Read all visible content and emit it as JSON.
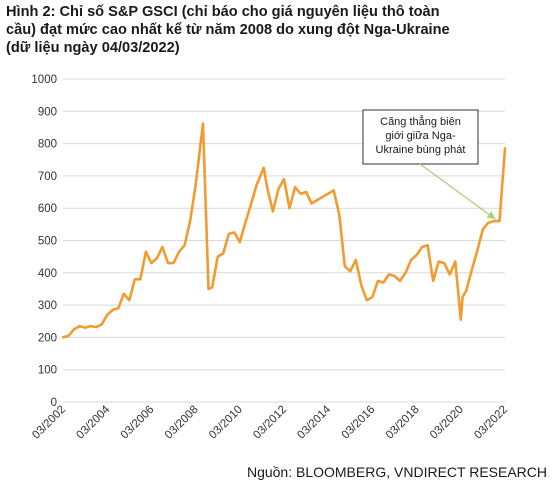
{
  "figure": {
    "title_lines": [
      "Hình 2: Chỉ số S&P GSCI (chỉ báo cho giá nguyên liệu thô toàn",
      "cầu) đạt mức cao nhất kể từ năm 2008 do xung đột Nga-Ukraine",
      "(dữ liệu ngày 04/03/2022)"
    ],
    "source": "Nguồn: BLOOMBERG, VNDIRECT RESEARCH"
  },
  "chart_data": {
    "type": "line",
    "title": "Hình 2: Chỉ số S&P GSCI (chỉ báo cho giá nguyên liệu thô toàn cầu) đạt mức cao nhất kể từ năm 2008 do xung đột Nga-Ukraine (dữ liệu ngày 04/03/2022)",
    "xlabel": "",
    "ylabel": "",
    "ylim": [
      0,
      1000
    ],
    "xlim": [
      "2002-03",
      "2022-03"
    ],
    "yticks": [
      0,
      100,
      200,
      300,
      400,
      500,
      600,
      700,
      800,
      900,
      1000
    ],
    "xticks": [
      "03/2002",
      "03/2004",
      "03/2006",
      "03/2008",
      "03/2010",
      "03/2012",
      "03/2014",
      "03/2016",
      "03/2018",
      "03/2020",
      "03/2022"
    ],
    "grid": "horizontal",
    "series_color": "#f29b30",
    "series": [
      {
        "x": [
          "2002-03",
          "2002-06",
          "2002-09",
          "2002-12",
          "2003-03",
          "2003-06",
          "2003-09",
          "2003-12",
          "2004-03",
          "2004-06",
          "2004-09",
          "2004-12",
          "2005-03",
          "2005-06",
          "2005-09",
          "2005-12",
          "2006-03",
          "2006-06",
          "2006-09",
          "2006-12",
          "2007-03",
          "2007-06",
          "2007-09",
          "2007-12",
          "2008-03",
          "2008-07",
          "2008-10",
          "2008-12",
          "2009-03",
          "2009-06",
          "2009-09",
          "2009-12",
          "2010-03",
          "2010-06",
          "2010-09",
          "2010-12",
          "2011-04",
          "2011-06",
          "2011-09",
          "2011-12",
          "2012-03",
          "2012-06",
          "2012-09",
          "2012-12",
          "2013-03",
          "2013-06",
          "2013-09",
          "2013-12",
          "2014-06",
          "2014-09",
          "2014-12",
          "2015-03",
          "2015-06",
          "2015-09",
          "2015-12",
          "2016-03",
          "2016-06",
          "2016-09",
          "2016-12",
          "2017-03",
          "2017-06",
          "2017-09",
          "2017-12",
          "2018-03",
          "2018-06",
          "2018-09",
          "2018-12",
          "2019-03",
          "2019-06",
          "2019-09",
          "2019-12",
          "2020-03",
          "2020-04",
          "2020-06",
          "2020-09",
          "2020-12",
          "2021-03",
          "2021-06",
          "2021-09",
          "2021-12",
          "2022-03"
        ],
        "values": [
          200,
          205,
          225,
          235,
          230,
          235,
          232,
          240,
          270,
          285,
          290,
          335,
          315,
          380,
          380,
          465,
          430,
          445,
          480,
          430,
          430,
          465,
          485,
          560,
          670,
          862,
          350,
          355,
          450,
          460,
          520,
          525,
          495,
          555,
          610,
          670,
          725,
          660,
          590,
          660,
          690,
          600,
          665,
          645,
          650,
          615,
          625,
          635,
          655,
          580,
          420,
          405,
          440,
          360,
          315,
          325,
          375,
          370,
          395,
          390,
          375,
          400,
          440,
          455,
          480,
          485,
          375,
          435,
          430,
          395,
          435,
          255,
          325,
          345,
          410,
          470,
          535,
          555,
          560,
          560,
          785
        ]
      }
    ],
    "annotations": [
      {
        "lines": [
          "Căng thẳng biên",
          "giới giữa Nga-",
          "Ukraine bùng phát"
        ],
        "points_to": "2021-12"
      }
    ]
  }
}
